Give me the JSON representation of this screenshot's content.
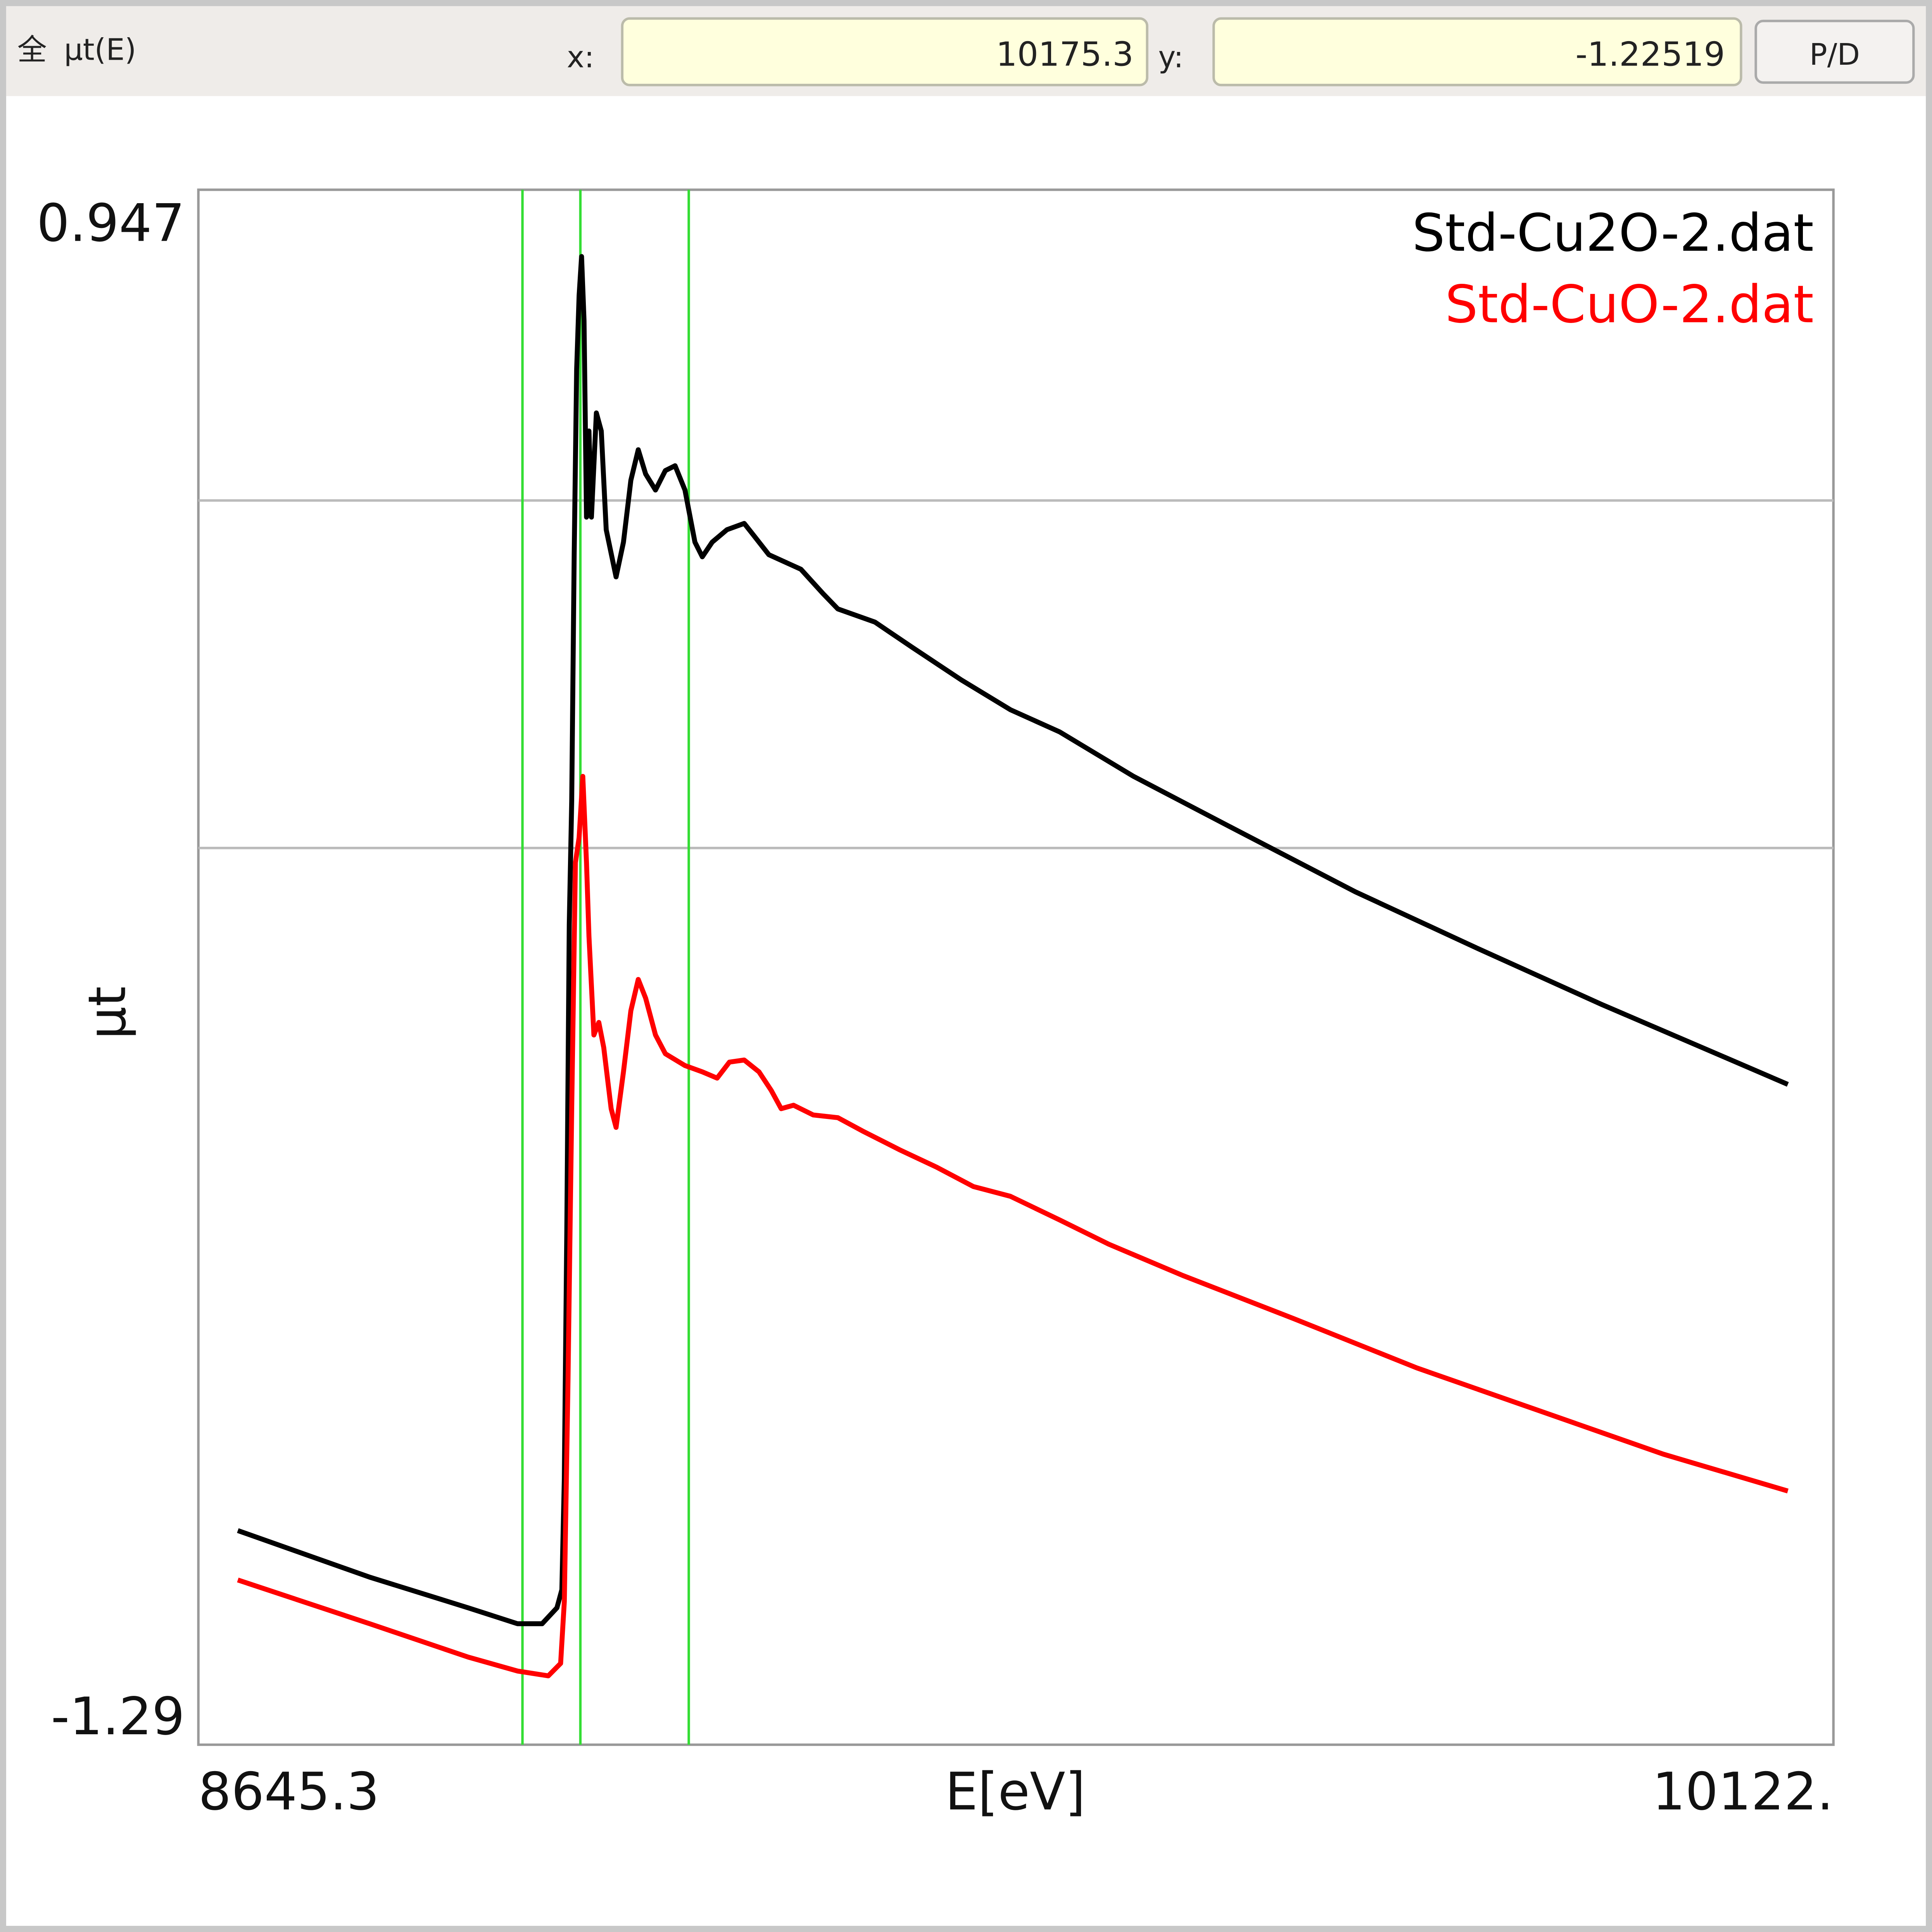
{
  "toolbar": {
    "icon": "全",
    "title": "µt(E)",
    "x_label": "x:",
    "x_value": "10175.3",
    "y_label": "y:",
    "y_value": "-1.22519",
    "button": "P/D"
  },
  "chart_data": {
    "type": "line",
    "xlabel": "E[eV]",
    "ylabel": "µt",
    "xlim": [
      8645.3,
      10122
    ],
    "xticks": [
      8645.3,
      {
        "value": 10122,
        "label": "10122."
      }
    ],
    "ylim": [
      -1.29,
      0.947
    ],
    "yticks": [
      -1.29,
      0.947
    ],
    "ygrid": [
      0,
      0.5
    ],
    "legend": "upper right",
    "markers": {
      "color": "#33dd33",
      "x": [
        8938,
        8990.3,
        9088.2
      ]
    },
    "series": [
      {
        "name": "Std-Cu2O-2.dat",
        "color": "#000000",
        "x": [
          8680.9,
          8800.0,
          8889.0,
          8933.5,
          8955.8,
          8969.1,
          8973.6,
          8975.8,
          8978.0,
          8980.3,
          8982.5,
          8984.7,
          8986.9,
          8989.2,
          8991.4,
          8993.6,
          8995.8,
          8998.1,
          9000.3,
          9004.7,
          9009.2,
          9013.6,
          9022.5,
          9029.2,
          9035.9,
          9042.6,
          9049.2,
          9058.1,
          9067.0,
          9075.9,
          9084.8,
          9093.8,
          9100.4,
          9109.3,
          9122.7,
          9138.3,
          9147.2,
          9160.5,
          9189.5,
          9209.5,
          9222.9,
          9256.3,
          9289.7,
          9334.1,
          9378.6,
          9423.1,
          9489.9,
          9578.9,
          9690.2,
          9801.5,
          9912.7,
          10024.0,
          10080.8
        ],
        "values": [
          -0.982,
          -1.049,
          -1.093,
          -1.116,
          -1.116,
          -1.093,
          -1.067,
          -0.907,
          -0.553,
          -0.11,
          0.068,
          0.422,
          0.688,
          0.795,
          0.851,
          0.759,
          0.476,
          0.6,
          0.476,
          0.626,
          0.6,
          0.458,
          0.39,
          0.44,
          0.529,
          0.573,
          0.538,
          0.515,
          0.543,
          0.55,
          0.515,
          0.44,
          0.419,
          0.44,
          0.458,
          0.467,
          0.449,
          0.422,
          0.401,
          0.366,
          0.344,
          0.325,
          0.289,
          0.242,
          0.199,
          0.167,
          0.103,
          0.029,
          -0.063,
          -0.145,
          -0.225,
          -0.301,
          -0.34
        ]
      },
      {
        "name": "Std-CuO-2.dat",
        "color": "#ff0000",
        "x": [
          8680.9,
          8800.0,
          8889.0,
          8933.5,
          8961.3,
          8972.5,
          8975.8,
          8979.1,
          8982.5,
          8985.8,
          8989.2,
          8992.5,
          8995.8,
          8998.1,
          9002.5,
          9007.0,
          9011.4,
          9018.1,
          9022.5,
          9029.2,
          9035.9,
          9042.6,
          9049.2,
          9058.1,
          9067.0,
          9084.8,
          9100.4,
          9113.8,
          9124.9,
          9138.3,
          9151.6,
          9162.8,
          9171.7,
          9182.8,
          9200.6,
          9222.9,
          9245.1,
          9278.5,
          9311.9,
          9345.3,
          9378.6,
          9423.1,
          9467.6,
          9534.4,
          9634.6,
          9745.8,
          9857.1,
          9968.4,
          10080.8
        ],
        "values": [
          -1.053,
          -1.116,
          -1.164,
          -1.184,
          -1.191,
          -1.173,
          -1.084,
          -0.765,
          -0.375,
          -0.021,
          0.015,
          0.103,
          -0.021,
          -0.127,
          -0.269,
          -0.251,
          -0.287,
          -0.375,
          -0.402,
          -0.322,
          -0.234,
          -0.189,
          -0.216,
          -0.269,
          -0.296,
          -0.313,
          -0.322,
          -0.331,
          -0.308,
          -0.305,
          -0.322,
          -0.349,
          -0.375,
          -0.37,
          -0.384,
          -0.388,
          -0.407,
          -0.434,
          -0.459,
          -0.487,
          -0.501,
          -0.535,
          -0.57,
          -0.615,
          -0.677,
          -0.748,
          -0.81,
          -0.872,
          -0.925
        ]
      }
    ]
  }
}
